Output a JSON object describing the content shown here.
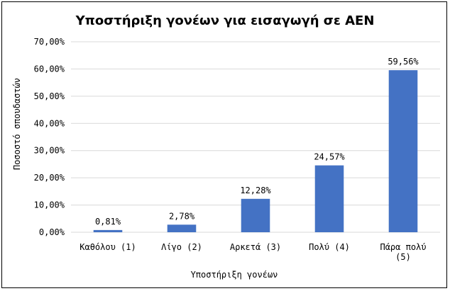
{
  "chart_data": {
    "type": "bar",
    "title": "Υποστήριξη γονέων για εισαγωγή σε ΑΕΝ",
    "xlabel": "Υποστήριξη γονέων",
    "ylabel": "Ποσοστό σπουδαστών",
    "categories": [
      [
        "Καθόλου (1)"
      ],
      [
        "Λίγο (2)"
      ],
      [
        "Αρκετά (3)"
      ],
      [
        "Πολύ (4)"
      ],
      [
        "Πάρα πολύ",
        "(5)"
      ]
    ],
    "values": [
      0.81,
      2.78,
      12.28,
      24.57,
      59.56
    ],
    "value_labels": [
      "0,81%",
      "2,78%",
      "12,28%",
      "24,57%",
      "59,56%"
    ],
    "yticks": [
      "0,00%",
      "10,00%",
      "20,00%",
      "30,00%",
      "40,00%",
      "50,00%",
      "60,00%",
      "70,00%"
    ],
    "ylim": [
      0,
      70
    ],
    "ytick_step": 10,
    "grid": true,
    "legend": "none",
    "bar_color": "#4472C4"
  }
}
